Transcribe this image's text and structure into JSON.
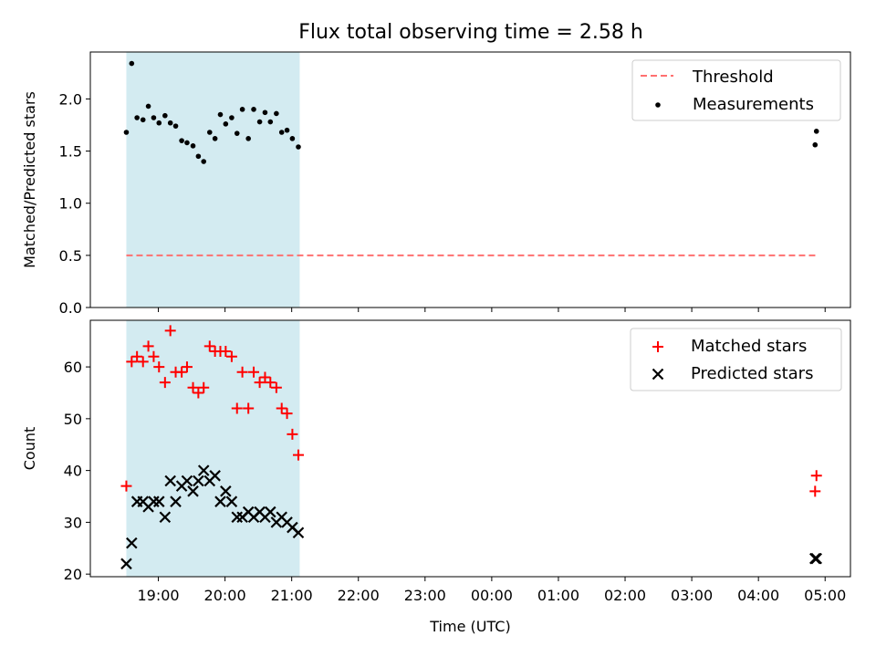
{
  "title": "Flux total observing time = 2.58 h",
  "colors": {
    "shade": "#d3ebf1",
    "threshold": "#ff7070",
    "measure": "#000000",
    "matched": "#ff0000",
    "predicted": "#000000"
  },
  "chart_data": [
    {
      "type": "scatter",
      "name": "ratio",
      "ylabel": "Matched/Predicted stars",
      "ylim": [
        0,
        2.45
      ],
      "yticks": [
        0.0,
        0.5,
        1.0,
        1.5,
        2.0
      ],
      "ytick_labels": [
        "0.0",
        "0.5",
        "1.0",
        "1.5",
        "2.0"
      ],
      "threshold": {
        "label": "Threshold",
        "value": 0.5,
        "x_start": 18.52,
        "x_end": 28.86
      },
      "measurements": {
        "label": "Measurements",
        "x": [
          18.52,
          18.6,
          18.68,
          18.77,
          18.85,
          18.93,
          19.01,
          19.1,
          19.18,
          19.26,
          19.35,
          19.43,
          19.52,
          19.6,
          19.68,
          19.77,
          19.85,
          19.93,
          20.01,
          20.1,
          20.18,
          20.26,
          20.35,
          20.43,
          20.52,
          20.6,
          20.68,
          20.77,
          20.85,
          20.93,
          21.01,
          21.1,
          28.85,
          28.87
        ],
        "y": [
          1.68,
          2.34,
          1.82,
          1.8,
          1.93,
          1.82,
          1.77,
          1.84,
          1.77,
          1.74,
          1.6,
          1.58,
          1.55,
          1.45,
          1.4,
          1.68,
          1.62,
          1.85,
          1.76,
          1.82,
          1.67,
          1.9,
          1.62,
          1.9,
          1.78,
          1.87,
          1.78,
          1.86,
          1.68,
          1.7,
          1.62,
          1.54,
          1.56,
          1.69
        ]
      },
      "shade_range": [
        18.52,
        21.12
      ]
    },
    {
      "type": "scatter",
      "name": "counts",
      "ylabel": "Count",
      "xlabel": "Time (UTC)",
      "ylim": [
        19.5,
        69
      ],
      "yticks": [
        20,
        30,
        40,
        50,
        60
      ],
      "ytick_labels": [
        "20",
        "30",
        "40",
        "50",
        "60"
      ],
      "xticks": [
        19,
        20,
        21,
        22,
        23,
        24,
        25,
        26,
        27,
        28,
        29
      ],
      "xtick_labels": [
        "19:00",
        "20:00",
        "21:00",
        "22:00",
        "23:00",
        "00:00",
        "01:00",
        "02:00",
        "03:00",
        "04:00",
        "05:00"
      ],
      "xlim": [
        17.98,
        29.38
      ],
      "series": [
        {
          "name": "Matched stars",
          "x": [
            18.52,
            18.6,
            18.68,
            18.77,
            18.85,
            18.93,
            19.01,
            19.1,
            19.18,
            19.26,
            19.35,
            19.43,
            19.52,
            19.6,
            19.68,
            19.77,
            19.85,
            19.93,
            20.01,
            20.1,
            20.18,
            20.26,
            20.35,
            20.43,
            20.52,
            20.6,
            20.68,
            20.77,
            20.85,
            20.93,
            21.01,
            21.1,
            28.85,
            28.87
          ],
          "y": [
            37,
            61,
            62,
            61,
            64,
            62,
            60,
            57,
            67,
            59,
            59,
            60,
            56,
            55,
            56,
            64,
            63,
            63,
            63,
            62,
            52,
            59,
            52,
            59,
            57,
            58,
            57,
            56,
            52,
            51,
            47,
            43,
            36,
            39
          ]
        },
        {
          "name": "Predicted stars",
          "x": [
            18.52,
            18.6,
            18.68,
            18.77,
            18.85,
            18.93,
            19.01,
            19.1,
            19.18,
            19.26,
            19.35,
            19.43,
            19.52,
            19.6,
            19.68,
            19.77,
            19.85,
            19.93,
            20.01,
            20.1,
            20.18,
            20.26,
            20.35,
            20.43,
            20.52,
            20.6,
            20.68,
            20.77,
            20.85,
            20.93,
            21.01,
            21.1,
            28.85,
            28.87
          ],
          "y": [
            22,
            26,
            34,
            34,
            33,
            34,
            34,
            31,
            38,
            34,
            37,
            38,
            36,
            38,
            40,
            38,
            39,
            34,
            36,
            34,
            31,
            31,
            32,
            31,
            32,
            31,
            32,
            30,
            31,
            30,
            29,
            28,
            23,
            23
          ]
        }
      ],
      "shade_range": [
        18.52,
        21.12
      ]
    }
  ]
}
